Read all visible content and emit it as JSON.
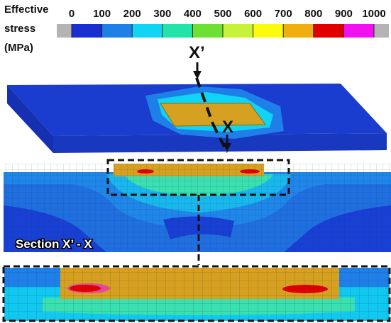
{
  "legend": {
    "title": [
      "Effective",
      "stress",
      "(MPa)"
    ],
    "ticks": [
      0,
      100,
      200,
      300,
      400,
      500,
      600,
      700,
      800,
      900,
      1000
    ],
    "colors": [
      "#1a2fd0",
      "#1f7fe8",
      "#10d4f4",
      "#22e3a8",
      "#6ee032",
      "#c6f23a",
      "#fbfb10",
      "#f0ae10",
      "#e00000",
      "#f010f0"
    ],
    "out_of_range_color": "#b4b4b4"
  },
  "labels": {
    "top_section_mark": "X’",
    "bottom_section_mark": "X",
    "section": "Section X’ - X"
  }
}
